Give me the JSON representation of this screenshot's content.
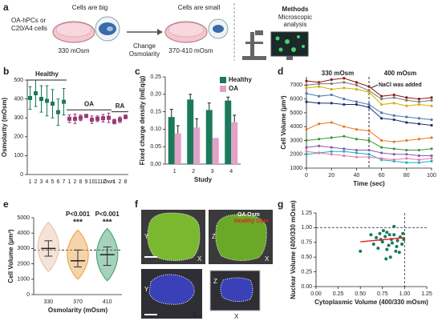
{
  "panel_a": {
    "label": "a",
    "cells_label": [
      "OA-hPCs or",
      "C20/A4 cells"
    ],
    "big": "Cells are big",
    "osm_before": "330 mOsm",
    "change": [
      "Change",
      "Osmolarity"
    ],
    "small": "Cells are small",
    "osm_after": "370-410 mOsm",
    "methods_title": "Methods",
    "methods": [
      "Microscopic",
      "analysis"
    ]
  },
  "panel_f": {
    "label": "f",
    "legend": [
      "OA Osm",
      "Healthy Osm"
    ],
    "axes": [
      "Y",
      "X",
      "Z",
      "X",
      "Y",
      "X",
      "Z",
      "X"
    ]
  },
  "chart_data": [
    {
      "type": "dot",
      "label": "b",
      "ylabel": "Osmolarity (mOsm)",
      "categories": [
        "1",
        "2",
        "3",
        "4",
        "5",
        "6",
        "7",
        "1",
        "2",
        "8",
        "9",
        "10",
        "11",
        "12",
        "Own",
        "1",
        "2",
        "8"
      ],
      "ylim": [
        0,
        500
      ],
      "yticks": [
        0,
        100,
        200,
        300,
        400,
        500
      ],
      "series": [
        {
          "name": "Healthy",
          "color": "#1a7a5a",
          "values": [
            405,
            430,
            400,
            390,
            375,
            330,
            385,
            null,
            null,
            null,
            null,
            null,
            null,
            null,
            null,
            null,
            null,
            null
          ],
          "errors": [
            60,
            70,
            70,
            80,
            75,
            70,
            70,
            null,
            null,
            null,
            null,
            null,
            null,
            null,
            null,
            null,
            null,
            null
          ]
        },
        {
          "name": "OA",
          "color": "#9b3a7a",
          "values": [
            null,
            null,
            null,
            null,
            null,
            null,
            null,
            295,
            295,
            300,
            310,
            290,
            295,
            298,
            300,
            null,
            null,
            null
          ],
          "errors": [
            null,
            null,
            null,
            null,
            null,
            null,
            null,
            20,
            25,
            15,
            8,
            20,
            15,
            20,
            25,
            null,
            null,
            null
          ]
        },
        {
          "name": "RA",
          "color": "#9b3a7a",
          "values": [
            null,
            null,
            null,
            null,
            null,
            null,
            null,
            null,
            null,
            null,
            null,
            null,
            null,
            null,
            null,
            280,
            290,
            305
          ],
          "errors": [
            null,
            null,
            null,
            null,
            null,
            null,
            null,
            null,
            null,
            null,
            null,
            null,
            null,
            null,
            null,
            12,
            15,
            10
          ]
        }
      ]
    },
    {
      "type": "bar",
      "label": "c",
      "xlabel": "Study",
      "ylabel": "Fixed charge density (mEq/g)",
      "categories": [
        "1",
        "2",
        "3",
        "4"
      ],
      "ylim": [
        0,
        0.25
      ],
      "yticks": [
        {
          "value": 0,
          "label": "0.00"
        },
        {
          "value": 0.05,
          "label": "0.05"
        },
        {
          "value": 0.1,
          "label": "0.10"
        },
        {
          "value": 0.15,
          "label": "0.15"
        },
        {
          "value": 0.2,
          "label": "0.20"
        },
        {
          "value": 0.25,
          "label": "0.25"
        }
      ],
      "series": [
        {
          "name": "Healthy",
          "color": "#1a7a5a",
          "values": [
            0.135,
            0.185,
            0.155,
            0.182
          ],
          "errors": [
            0.022,
            0.015,
            0.02,
            0.01
          ]
        },
        {
          "name": "OA",
          "color": "#e3a1c8",
          "values": [
            0.088,
            0.105,
            0.075,
            0.12
          ],
          "errors": [
            0.022,
            0.025,
            null,
            0.02
          ]
        }
      ]
    },
    {
      "type": "line",
      "label": "d",
      "xlabel": "Time (sec)",
      "ylabel": "Cell Volume (µm³)",
      "phases": [
        "330 mOsm",
        "400 mOsm"
      ],
      "event": "NaCl was added",
      "event_x": 50,
      "x": [
        0,
        10,
        20,
        30,
        40,
        50,
        60,
        70,
        80,
        90,
        100
      ],
      "xlim": [
        0,
        100
      ],
      "xticks": [
        0,
        20,
        40,
        60,
        80,
        100
      ],
      "ylim": [
        1000,
        7600
      ],
      "yticks": [
        1000,
        2000,
        3000,
        4000,
        5000,
        6000,
        7000
      ],
      "series": [
        {
          "color": "#8b1a1a",
          "values": [
            7300,
            7200,
            7400,
            7500,
            7200,
            6900,
            6200,
            6300,
            6100,
            6000,
            6100
          ]
        },
        {
          "color": "#777777",
          "values": [
            7000,
            7100,
            7100,
            7200,
            7000,
            6600,
            6000,
            6100,
            5900,
            5800,
            5900
          ]
        },
        {
          "color": "#d4b000",
          "values": [
            6800,
            6900,
            6700,
            6800,
            6700,
            6500,
            5600,
            5700,
            5500,
            5600,
            5500
          ]
        },
        {
          "color": "#4a7ab0",
          "values": [
            6400,
            6200,
            6300,
            6000,
            5800,
            5600,
            5000,
            4800,
            4700,
            4600,
            4500
          ]
        },
        {
          "color": "#1f2f6b",
          "values": [
            5800,
            5700,
            5700,
            5600,
            5600,
            5400,
            4600,
            4500,
            4300,
            4200,
            4100
          ]
        },
        {
          "color": "#e8771e",
          "values": [
            3800,
            4200,
            4300,
            4000,
            3800,
            3700,
            3000,
            2900,
            3000,
            3100,
            3200
          ]
        },
        {
          "color": "#3a9a3a",
          "values": [
            3000,
            3100,
            3200,
            3300,
            3100,
            3000,
            2500,
            2400,
            2300,
            2300,
            2400
          ]
        },
        {
          "color": "#8a5ab0",
          "values": [
            2500,
            2600,
            2500,
            2400,
            2300,
            2300,
            2100,
            2000,
            2000,
            1900,
            1900
          ]
        },
        {
          "color": "#1ab0c0",
          "values": [
            2000,
            2100,
            2200,
            2200,
            2100,
            2000,
            1600,
            1500,
            1400,
            1400,
            1500
          ]
        },
        {
          "color": "#e07ab0",
          "values": [
            2200,
            2100,
            2000,
            1900,
            1800,
            1800,
            1700,
            1600,
            1700,
            1600,
            1700
          ]
        }
      ]
    },
    {
      "type": "violin",
      "label": "e",
      "xlabel": "Osmolarity (mOsm)",
      "ylabel": "Cell Volume (µm³)",
      "categories": [
        "330",
        "370",
        "410"
      ],
      "colors": [
        "#e8c0a8",
        "#e8a040",
        "#3a9a6a"
      ],
      "ylim": [
        0,
        5000
      ],
      "yticks": [
        0,
        1000,
        2000,
        3000,
        4000,
        5000
      ],
      "min": [
        1500,
        1000,
        900
      ],
      "q1": [
        2500,
        1800,
        1900
      ],
      "median": [
        3000,
        2200,
        2600
      ],
      "q3": [
        3500,
        2900,
        3100
      ],
      "max": [
        4700,
        4200,
        4300
      ],
      "reference": 2900,
      "significance": [
        null,
        "P<0.001",
        "P<0.001"
      ],
      "stars": [
        null,
        "***",
        "***"
      ]
    },
    {
      "type": "scatter",
      "label": "g",
      "xlabel": "Cytoplasmic Volume (400/330 mOsm)",
      "ylabel": "Nuclear Volume (400/330 mOsm)",
      "color": "#1a7a5a",
      "fit_color": "#e02020",
      "xlim": [
        0,
        1.25
      ],
      "ylim": [
        0,
        1.25
      ],
      "xticks": [
        {
          "value": 0,
          "label": "0.00"
        },
        {
          "value": 0.25,
          "label": "0.25"
        },
        {
          "value": 0.5,
          "label": "0.50"
        },
        {
          "value": 0.75,
          "label": "0.75"
        },
        {
          "value": 1,
          "label": "1.00"
        },
        {
          "value": 1.25,
          "label": "1.25"
        }
      ],
      "yticks": [
        {
          "value": 0,
          "label": "0.00"
        },
        {
          "value": 0.25,
          "label": "0.25"
        },
        {
          "value": 0.5,
          "label": "0.50"
        },
        {
          "value": 0.75,
          "label": "0.75"
        },
        {
          "value": 1,
          "label": "1.00"
        },
        {
          "value": 1.25,
          "label": "1.25"
        }
      ],
      "reference_x": 1,
      "reference_y": 1,
      "x": [
        0.62,
        0.68,
        0.72,
        0.75,
        0.78,
        0.8,
        0.82,
        0.85,
        0.88,
        0.9,
        0.7,
        0.65,
        0.92,
        0.95,
        0.98,
        0.76,
        0.84,
        0.8,
        0.86,
        0.73,
        0.91,
        0.97,
        0.5,
        0.94,
        0.88,
        0.79,
        0.83,
        0.99
      ],
      "y": [
        0.88,
        0.83,
        0.9,
        0.76,
        0.85,
        0.92,
        0.7,
        0.8,
        0.88,
        0.6,
        0.65,
        0.72,
        0.78,
        0.84,
        0.9,
        0.95,
        0.5,
        0.63,
        0.74,
        0.8,
        0.68,
        0.72,
        0.6,
        0.58,
        1.02,
        0.47,
        0.88,
        0.8
      ],
      "fit": {
        "x": [
          0.5,
          1
        ],
        "y": [
          0.76,
          0.83
        ]
      }
    }
  ]
}
